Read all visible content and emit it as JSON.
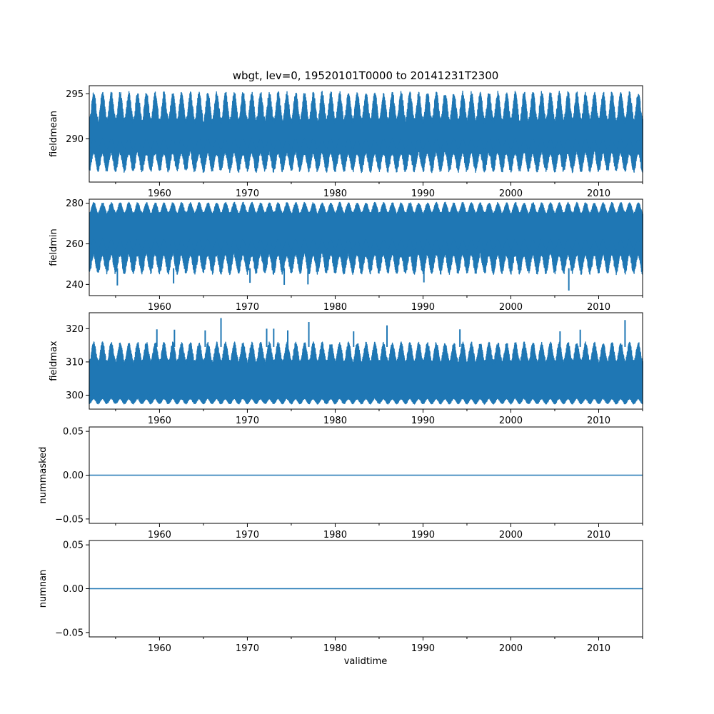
{
  "chart_data": {
    "type": "line",
    "title": "wbgt, lev=0, 19520101T0000 to 20141231T2300",
    "xlabel": "validtime",
    "xlim": [
      1952.0,
      2015.0
    ],
    "xticks": [
      1960,
      1970,
      1980,
      1990,
      2000,
      2010
    ],
    "xticklabels": [
      "1960",
      "1970",
      "1980",
      "1990",
      "2000",
      "2010"
    ],
    "xminor": [
      1955,
      1965,
      1975,
      1985,
      1995,
      2005,
      2015
    ],
    "line_color": "#1f77b4",
    "panels": [
      {
        "id": "fieldmean",
        "ylabel": "fieldmean",
        "ylim": [
          285.2,
          295.9
        ],
        "yticks": [
          290,
          295
        ],
        "yticklabels": [
          "290",
          "295"
        ],
        "series": {
          "kind": "seasonal_band",
          "low": 286.5,
          "high": 295.0,
          "core_low": 288.5,
          "core_high": 292.0,
          "period": 1.0
        }
      },
      {
        "id": "fieldmin",
        "ylabel": "fieldmin",
        "ylim": [
          234.5,
          282.0
        ],
        "yticks": [
          240,
          260,
          280
        ],
        "yticklabels": [
          "240",
          "260",
          "280"
        ],
        "series": {
          "kind": "seasonal_band",
          "low": 246.0,
          "high": 280.0,
          "core_low": 255.0,
          "core_high": 275.0,
          "period": 1.0,
          "spikes_down": [
            [
              1955.2,
              239.5
            ],
            [
              1961.6,
              240.5
            ],
            [
              1970.3,
              240.8
            ],
            [
              1974.2,
              239.8
            ],
            [
              1976.9,
              240.0
            ],
            [
              1990.1,
              241.0
            ],
            [
              2006.6,
              237.0
            ]
          ]
        }
      },
      {
        "id": "fieldmax",
        "ylabel": "fieldmax",
        "ylim": [
          295.8,
          324.8
        ],
        "yticks": [
          300,
          310,
          320
        ],
        "yticklabels": [
          "300",
          "310",
          "320"
        ],
        "series": {
          "kind": "seasonal_band",
          "low": 297.5,
          "high": 315.5,
          "core_low": 299.0,
          "core_high": 310.0,
          "period": 1.0,
          "spikes_up": [
            [
              1959.7,
              319.8
            ],
            [
              1961.7,
              319.7
            ],
            [
              1965.2,
              319.5
            ],
            [
              1967.0,
              323.2
            ],
            [
              1972.2,
              320.0
            ],
            [
              1973.0,
              320.0
            ],
            [
              1974.6,
              319.5
            ],
            [
              1977.0,
              322.0
            ],
            [
              1982.1,
              319.2
            ],
            [
              1985.9,
              321.0
            ],
            [
              1994.2,
              319.8
            ],
            [
              2005.6,
              319.2
            ],
            [
              2007.9,
              319.7
            ],
            [
              2013.0,
              322.6
            ]
          ]
        }
      },
      {
        "id": "nummasked",
        "ylabel": "nummasked",
        "ylim": [
          -0.055,
          0.055
        ],
        "yticks": [
          -0.05,
          0.0,
          0.05
        ],
        "yticklabels": [
          "−0.05",
          "0.00",
          "0.05"
        ],
        "series": {
          "kind": "constant",
          "value": 0.0
        }
      },
      {
        "id": "numnan",
        "ylabel": "numnan",
        "ylim": [
          -0.055,
          0.055
        ],
        "yticks": [
          -0.05,
          0.0,
          0.05
        ],
        "yticklabels": [
          "−0.05",
          "0.00",
          "0.05"
        ],
        "series": {
          "kind": "constant",
          "value": 0.0
        }
      }
    ]
  }
}
